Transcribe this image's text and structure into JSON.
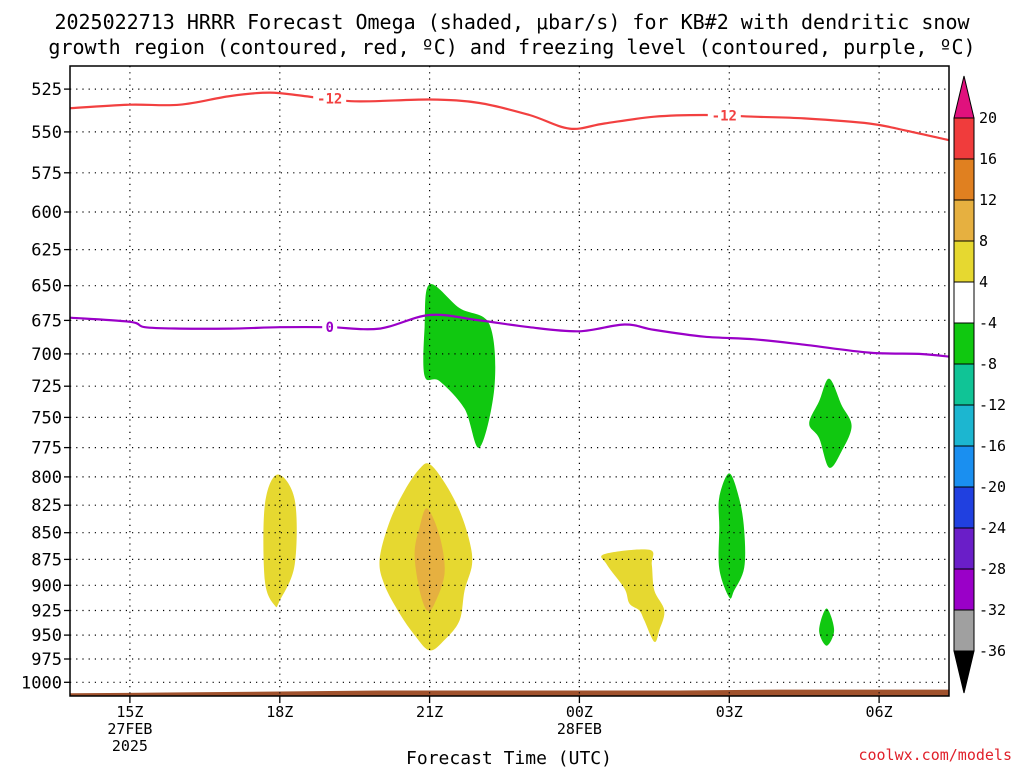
{
  "title": {
    "line1": "2025022713 HRRR Forecast Omega (shaded, μbar/s) for KB#2 with dendritic snow",
    "line2": "growth region (contoured, red, ºC) and freezing level (contoured, purple, ºC)"
  },
  "credit": "coolwx.com/models",
  "chart_data": {
    "type": "contour",
    "title": "2025022713 HRRR Forecast Omega (shaded, μbar/s) for KB#2 with dendritic snow growth region (contoured, red, ºC) and freezing level (contoured, purple, ºC)",
    "xlabel": "Forecast Time (UTC)",
    "ylabel": "",
    "x_range_hours": [
      13.8,
      31.4
    ],
    "x_ticks": [
      {
        "hour": 15,
        "lines": [
          "15Z",
          "27FEB",
          "2025"
        ]
      },
      {
        "hour": 18,
        "lines": [
          "18Z"
        ]
      },
      {
        "hour": 21,
        "lines": [
          "21Z"
        ]
      },
      {
        "hour": 24,
        "lines": [
          "00Z",
          "28FEB"
        ]
      },
      {
        "hour": 27,
        "lines": [
          "03Z"
        ]
      },
      {
        "hour": 30,
        "lines": [
          "06Z"
        ]
      }
    ],
    "y_axis": {
      "scale": "log-pressure",
      "inverted": true,
      "range_hpa": [
        1015,
        512
      ]
    },
    "y_ticks": [
      525,
      550,
      575,
      600,
      625,
      650,
      675,
      700,
      725,
      750,
      775,
      800,
      825,
      850,
      875,
      900,
      925,
      950,
      975,
      1000
    ],
    "grid": "dotted",
    "colorbar": {
      "units": "μbar/s",
      "levels": [
        -36,
        -32,
        -28,
        -24,
        -20,
        -16,
        -12,
        -8,
        -4,
        4,
        8,
        12,
        16,
        20
      ],
      "colors": [
        "#a0a0a0",
        "#9a00c8",
        "#6a1ec8",
        "#2040e0",
        "#1a8ff0",
        "#1cb6d0",
        "#10c496",
        "#10c810",
        "#ffffff",
        "#e6d830",
        "#e6b040",
        "#e08020",
        "#f03c3c"
      ],
      "under_color": "#000000",
      "over_color": "#e0117d"
    },
    "contours": [
      {
        "label": "-12",
        "color": "#f24040",
        "label_at_hours": [
          19.0,
          26.9
        ],
        "points": [
          [
            13.8,
            536
          ],
          [
            15.0,
            534
          ],
          [
            16.0,
            534
          ],
          [
            17.0,
            529
          ],
          [
            17.8,
            527
          ],
          [
            18.5,
            529
          ],
          [
            19.5,
            532
          ],
          [
            21.0,
            531
          ],
          [
            22.0,
            533
          ],
          [
            23.0,
            540
          ],
          [
            23.8,
            548
          ],
          [
            24.5,
            545
          ],
          [
            25.5,
            541
          ],
          [
            26.5,
            540
          ],
          [
            27.5,
            541
          ],
          [
            28.5,
            542
          ],
          [
            29.8,
            545
          ],
          [
            30.5,
            549
          ],
          [
            31.4,
            555
          ]
        ]
      },
      {
        "label": "0",
        "color": "#9a00c8",
        "label_at_hours": [
          19.0
        ],
        "points": [
          [
            13.8,
            673
          ],
          [
            15.0,
            676
          ],
          [
            15.3,
            680
          ],
          [
            16.0,
            681
          ],
          [
            17.0,
            681
          ],
          [
            18.0,
            680
          ],
          [
            19.0,
            680
          ],
          [
            20.0,
            681
          ],
          [
            21.0,
            671
          ],
          [
            22.0,
            675
          ],
          [
            23.0,
            680
          ],
          [
            24.0,
            683
          ],
          [
            24.9,
            678
          ],
          [
            25.5,
            682
          ],
          [
            26.5,
            687
          ],
          [
            27.5,
            689
          ],
          [
            28.5,
            693
          ],
          [
            29.8,
            699
          ],
          [
            30.8,
            700
          ],
          [
            31.4,
            702
          ]
        ]
      }
    ],
    "shaded_regions": [
      {
        "name": "green-upper",
        "color": "#10c810",
        "range": [
          -8,
          -4
        ],
        "points": [
          [
            21.0,
            649
          ],
          [
            21.6,
            666
          ],
          [
            22.2,
            678
          ],
          [
            22.3,
            725
          ],
          [
            22.0,
            775
          ],
          [
            21.7,
            743
          ],
          [
            21.2,
            721
          ],
          [
            20.9,
            717
          ],
          [
            20.9,
            680
          ]
        ]
      },
      {
        "name": "green-right",
        "color": "#10c810",
        "range": [
          -8,
          -4
        ],
        "points": [
          [
            29.0,
            719
          ],
          [
            29.25,
            740
          ],
          [
            29.45,
            757
          ],
          [
            29.25,
            778
          ],
          [
            29.0,
            792
          ],
          [
            28.8,
            767
          ],
          [
            28.6,
            755
          ],
          [
            28.8,
            737
          ]
        ]
      },
      {
        "name": "green-mid",
        "color": "#10c810",
        "range": [
          -8,
          -4
        ],
        "points": [
          [
            27.0,
            797
          ],
          [
            27.2,
            819
          ],
          [
            27.3,
            848
          ],
          [
            27.3,
            883
          ],
          [
            27.1,
            905
          ],
          [
            27.0,
            912
          ],
          [
            26.8,
            884
          ],
          [
            26.8,
            845
          ],
          [
            26.8,
            818
          ]
        ]
      },
      {
        "name": "green-small",
        "color": "#10c810",
        "range": [
          -8,
          -4
        ],
        "points": [
          [
            28.95,
            923
          ],
          [
            29.1,
            945
          ],
          [
            28.95,
            961
          ],
          [
            28.8,
            945
          ]
        ]
      },
      {
        "name": "yellow-18z",
        "color": "#e6d830",
        "range": [
          4,
          8
        ],
        "points": [
          [
            17.95,
            798
          ],
          [
            18.3,
            820
          ],
          [
            18.3,
            880
          ],
          [
            18.0,
            915
          ],
          [
            17.9,
            920
          ],
          [
            17.7,
            895
          ],
          [
            17.7,
            825
          ]
        ]
      },
      {
        "name": "yellow-21z",
        "color": "#e6d830",
        "range": [
          4,
          8
        ],
        "points": [
          [
            21.0,
            789
          ],
          [
            21.3,
            805
          ],
          [
            21.6,
            830
          ],
          [
            21.8,
            858
          ],
          [
            21.85,
            880
          ],
          [
            21.7,
            905
          ],
          [
            21.6,
            935
          ],
          [
            21.3,
            955
          ],
          [
            21.0,
            966
          ],
          [
            20.7,
            950
          ],
          [
            20.4,
            928
          ],
          [
            20.1,
            900
          ],
          [
            20.0,
            875
          ],
          [
            20.2,
            840
          ],
          [
            20.5,
            812
          ],
          [
            20.8,
            793
          ]
        ]
      },
      {
        "name": "yellow-01z",
        "color": "#e6d830",
        "range": [
          4,
          8
        ],
        "points": [
          [
            24.5,
            870
          ],
          [
            25.4,
            866
          ],
          [
            25.45,
            880
          ],
          [
            25.5,
            905
          ],
          [
            25.7,
            925
          ],
          [
            25.6,
            945
          ],
          [
            25.5,
            957
          ],
          [
            25.3,
            935
          ],
          [
            25.2,
            925
          ],
          [
            25.0,
            918
          ],
          [
            24.9,
            903
          ],
          [
            24.55,
            880
          ]
        ]
      },
      {
        "name": "orange-21z",
        "color": "#e6b040",
        "range": [
          8,
          12
        ],
        "points": [
          [
            20.95,
            828
          ],
          [
            21.2,
            853
          ],
          [
            21.3,
            888
          ],
          [
            21.1,
            918
          ],
          [
            20.95,
            925
          ],
          [
            20.8,
            905
          ],
          [
            20.7,
            870
          ],
          [
            20.8,
            845
          ]
        ]
      }
    ],
    "terrain": {
      "color": "#a0522d",
      "points": [
        [
          13.8,
          1012
        ],
        [
          16.0,
          1011
        ],
        [
          18.0,
          1010
        ],
        [
          20.0,
          1009
        ],
        [
          26.0,
          1009
        ],
        [
          28.0,
          1008
        ],
        [
          31.4,
          1008
        ]
      ]
    }
  }
}
